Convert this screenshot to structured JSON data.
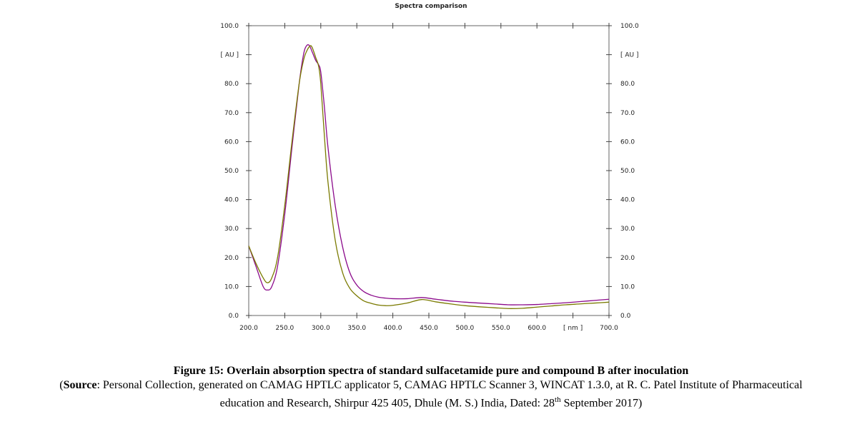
{
  "chart_data": {
    "type": "line",
    "title": "Spectra comparison",
    "x_unit_label": "[ nm ]",
    "y_unit_label": "[ AU ]",
    "xlim": [
      200,
      700
    ],
    "ylim": [
      0,
      100
    ],
    "x_ticks": [
      200,
      250,
      300,
      350,
      400,
      450,
      500,
      550,
      600,
      700
    ],
    "x_tick_labels": [
      "200.0",
      "250.0",
      "300.0",
      "350.0",
      "400.0",
      "450.0",
      "500.0",
      "550.0",
      "600.0",
      "700.0"
    ],
    "y_ticks": [
      0,
      10,
      20,
      30,
      40,
      50,
      60,
      70,
      80,
      100
    ],
    "y_tick_labels": [
      "0.0",
      "10.0",
      "20.0",
      "30.0",
      "40.0",
      "50.0",
      "60.0",
      "70.0",
      "80.0",
      "100.0"
    ],
    "grid": false,
    "series": [
      {
        "color": "#8b0a8b",
        "points": [
          [
            200,
            24
          ],
          [
            210,
            17
          ],
          [
            220,
            10
          ],
          [
            226,
            8.8
          ],
          [
            232,
            10
          ],
          [
            240,
            17
          ],
          [
            250,
            35
          ],
          [
            260,
            58
          ],
          [
            270,
            80
          ],
          [
            276,
            90
          ],
          [
            280,
            93
          ],
          [
            284,
            93.2
          ],
          [
            288,
            91
          ],
          [
            293,
            88
          ],
          [
            297,
            86.5
          ],
          [
            300,
            84
          ],
          [
            305,
            72
          ],
          [
            310,
            58
          ],
          [
            320,
            38
          ],
          [
            330,
            24
          ],
          [
            340,
            15
          ],
          [
            350,
            10.5
          ],
          [
            360,
            8.2
          ],
          [
            370,
            7
          ],
          [
            380,
            6.3
          ],
          [
            390,
            6
          ],
          [
            400,
            5.8
          ],
          [
            420,
            5.8
          ],
          [
            440,
            6.2
          ],
          [
            460,
            5.6
          ],
          [
            480,
            5
          ],
          [
            500,
            4.6
          ],
          [
            520,
            4.3
          ],
          [
            540,
            4
          ],
          [
            560,
            3.7
          ],
          [
            580,
            3.7
          ],
          [
            600,
            3.8
          ],
          [
            620,
            4.1
          ],
          [
            640,
            4.4
          ],
          [
            660,
            4.8
          ],
          [
            680,
            5.2
          ],
          [
            700,
            5.6
          ]
        ]
      },
      {
        "color": "#7a7a00",
        "points": [
          [
            200,
            24
          ],
          [
            210,
            18
          ],
          [
            220,
            13
          ],
          [
            226,
            11.3
          ],
          [
            232,
            13
          ],
          [
            240,
            20
          ],
          [
            250,
            38
          ],
          [
            260,
            60
          ],
          [
            270,
            80
          ],
          [
            276,
            88
          ],
          [
            280,
            91
          ],
          [
            285,
            93
          ],
          [
            288,
            92.5
          ],
          [
            293,
            89
          ],
          [
            297,
            86
          ],
          [
            300,
            80
          ],
          [
            305,
            62
          ],
          [
            310,
            46
          ],
          [
            320,
            26
          ],
          [
            330,
            15
          ],
          [
            340,
            9.5
          ],
          [
            350,
            6.8
          ],
          [
            360,
            5
          ],
          [
            370,
            4.2
          ],
          [
            380,
            3.6
          ],
          [
            390,
            3.4
          ],
          [
            400,
            3.5
          ],
          [
            420,
            4.3
          ],
          [
            440,
            5.5
          ],
          [
            460,
            4.7
          ],
          [
            480,
            4
          ],
          [
            500,
            3.4
          ],
          [
            520,
            3
          ],
          [
            540,
            2.7
          ],
          [
            560,
            2.4
          ],
          [
            580,
            2.5
          ],
          [
            600,
            2.9
          ],
          [
            620,
            3.3
          ],
          [
            640,
            3.7
          ],
          [
            660,
            4
          ],
          [
            680,
            4.3
          ],
          [
            700,
            4.6
          ]
        ]
      }
    ]
  },
  "caption": {
    "title": "Figure 15: Overlain absorption spectra of standard sulfacetamide pure and compound B after inoculation",
    "source_open": "(",
    "source_label": "Source",
    "source_text_1": ": Personal Collection, generated on CAMAG HPTLC applicator 5, CAMAG HPTLC Scanner 3, WINCAT 1.3.0, at R. C. Patel Institute of Pharmaceutical",
    "source_text_2": "education and Research, Shirpur 425 405, Dhule (M. S.) India, Dated: 28",
    "source_sup": "th",
    "source_text_3": " September 2017)"
  }
}
